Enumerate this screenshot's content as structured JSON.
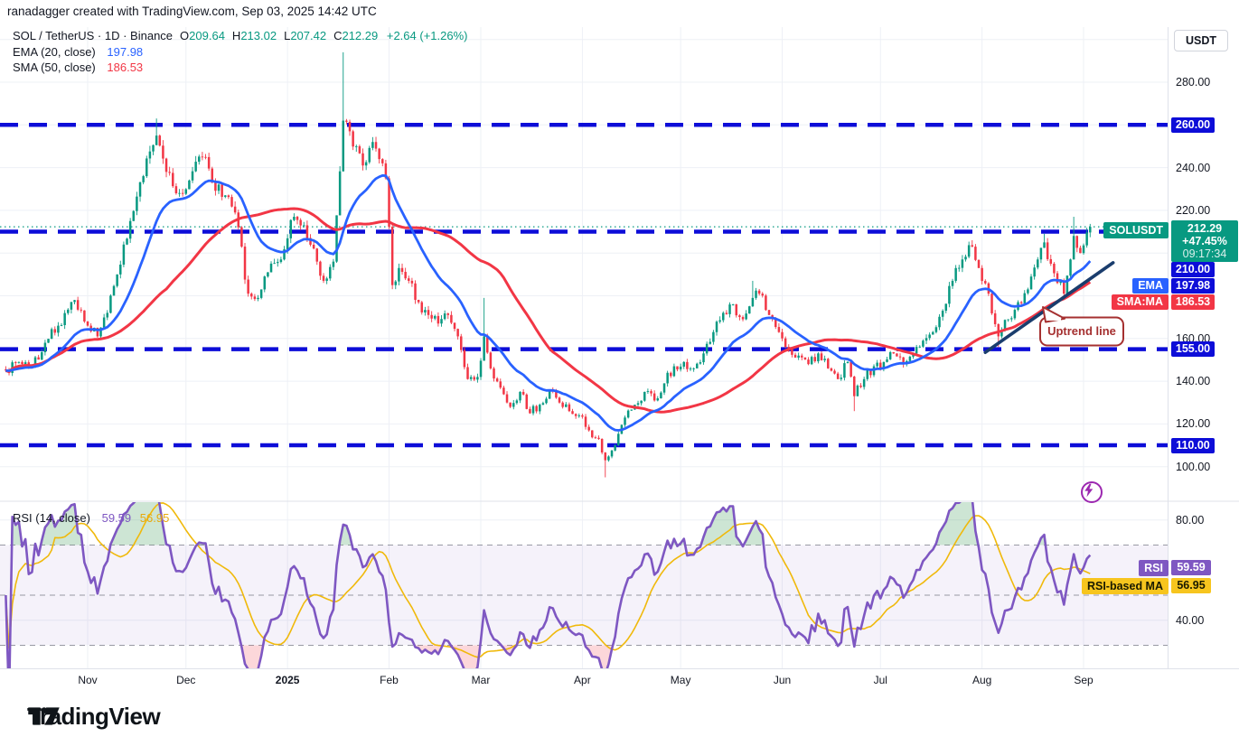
{
  "credit": "ranadagger created with TradingView.com, Sep 03, 2025 14:42 UTC",
  "legend": {
    "symbol": "SOL / TetherUS · 1D · Binance",
    "ohlc": [
      {
        "k": "O",
        "v": "209.64"
      },
      {
        "k": "H",
        "v": "213.02"
      },
      {
        "k": "L",
        "v": "207.42"
      },
      {
        "k": "C",
        "v": "212.29"
      }
    ],
    "change": "+2.64 (+1.26%)",
    "ema_label": "EMA (20, close)",
    "ema_value": "197.98",
    "sma_label": "SMA (50, close)",
    "sma_value": "186.53"
  },
  "rsi_legend": {
    "label": "RSI (14, close)",
    "value1": "59.59",
    "value2": "56.95"
  },
  "axis": {
    "currency": "USDT",
    "price_ticks": [
      {
        "label": "280.00",
        "price": 280
      },
      {
        "label": "240.00",
        "price": 240
      },
      {
        "label": "220.00",
        "price": 220
      },
      {
        "label": "160.00",
        "price": 160
      },
      {
        "label": "140.00",
        "price": 140
      },
      {
        "label": "120.00",
        "price": 120
      },
      {
        "label": "100.00",
        "price": 100
      }
    ],
    "rsi_ticks": [
      {
        "label": "80.00",
        "value": 80
      },
      {
        "label": "40.00",
        "value": 40
      }
    ]
  },
  "levels": [
    {
      "price": 260,
      "label": "260.00"
    },
    {
      "price": 210,
      "label": "210.00"
    },
    {
      "price": 155,
      "label": "155.00"
    },
    {
      "price": 110,
      "label": "110.00"
    }
  ],
  "last_price": {
    "chip": "SOLUSDT",
    "value": "212.29",
    "change_pct": "+47.45%",
    "countdown": "09:17:34"
  },
  "ema_badge": {
    "chip": "EMA",
    "value": "197.98"
  },
  "sma_badge": {
    "chip": "SMA:MA",
    "value": "186.53"
  },
  "rsi_badge": {
    "chip": "RSI",
    "value": "59.59"
  },
  "rsi_ma_badge": {
    "chip": "RSI-based MA",
    "value": "56.95"
  },
  "annotation": {
    "text": "Uptrend line"
  },
  "months": [
    {
      "label": "Nov",
      "day": 25
    },
    {
      "label": "Dec",
      "day": 55
    },
    {
      "label": "2025",
      "day": 86,
      "bold": true
    },
    {
      "label": "Feb",
      "day": 117
    },
    {
      "label": "Mar",
      "day": 145
    },
    {
      "label": "Apr",
      "day": 176
    },
    {
      "label": "May",
      "day": 206
    },
    {
      "label": "Jun",
      "day": 237
    },
    {
      "label": "Jul",
      "day": 267
    },
    {
      "label": "Aug",
      "day": 298
    },
    {
      "label": "Sep",
      "day": 329
    }
  ],
  "logo_text": "TradingView",
  "colors": {
    "up": "#089981",
    "down": "#f23645",
    "ema": "#2962ff",
    "sma": "#f23645",
    "rsi": "#7e57c2",
    "rsi_ma": "#f0b90b",
    "level_blue": "#0d0dd8",
    "trend_navy": "#1a3d6d",
    "callout_red": "#a53030",
    "bolt_purple": "#9c27b0",
    "grid": "#eef0f6",
    "separator": "#dfe2ea",
    "band_purple": "#7e57c2"
  },
  "chart_data": {
    "type": "candlestick",
    "symbol": "SOL/USDT",
    "interval": "1D",
    "exchange": "Binance",
    "title": "SOL / TetherUS · 1D · Binance",
    "last_ohlc": {
      "open": 209.64,
      "high": 213.02,
      "low": 207.42,
      "close": 212.29
    },
    "change": {
      "abs": 2.64,
      "pct": 1.26
    },
    "price_axis": {
      "min": 86,
      "max": 304,
      "tick_step": 20,
      "currency": "USDT"
    },
    "rsi_axis": {
      "dashed_levels": [
        70,
        50,
        30
      ],
      "ticks": [
        80,
        40
      ],
      "band": [
        30,
        70
      ]
    },
    "x_axis_months": [
      "Nov",
      "Dec",
      "2025",
      "Feb",
      "Mar",
      "Apr",
      "May",
      "Jun",
      "Jul",
      "Aug",
      "Sep"
    ],
    "horizontal_levels": [
      260,
      210,
      155,
      110
    ],
    "current_price_line": 212.29,
    "trendline": {
      "label": "Uptrend line",
      "from_day": 299,
      "from_price": 153.5,
      "to_day": 338,
      "to_price": 195.5
    },
    "indicators": [
      {
        "name": "EMA",
        "length": 20,
        "last": 197.98,
        "color": "#2962ff"
      },
      {
        "name": "SMA",
        "length": 50,
        "last": 186.53,
        "color": "#f23645"
      },
      {
        "name": "RSI",
        "length": 14,
        "last": 59.59,
        "color": "#7e57c2"
      },
      {
        "name": "RSI-based MA",
        "length": 14,
        "last": 56.95,
        "color": "#f0b90b"
      }
    ],
    "close_anchors_format": "[day_index, close, optional_high_wick, optional_low_wick] — day 0 ≈ first bar (early Oct 2024), day 25 = Nov 1, day 331 = Sep 3 2025; values estimated from gridlines",
    "close_anchors": [
      [
        0,
        145
      ],
      [
        4,
        149
      ],
      [
        8,
        147
      ],
      [
        12,
        158
      ],
      [
        16,
        166
      ],
      [
        21,
        178
      ],
      [
        25,
        166
      ],
      [
        28,
        161
      ],
      [
        31,
        172
      ],
      [
        34,
        190
      ],
      [
        38,
        215
      ],
      [
        42,
        236
      ],
      [
        46,
        255,
        263
      ],
      [
        49,
        238
      ],
      [
        52,
        228
      ],
      [
        56,
        234
      ],
      [
        60,
        245
      ],
      [
        63,
        233
      ],
      [
        67,
        227
      ],
      [
        70,
        219
      ],
      [
        74,
        181
      ],
      [
        77,
        179
      ],
      [
        80,
        191
      ],
      [
        84,
        197
      ],
      [
        88,
        217
      ],
      [
        91,
        213
      ],
      [
        95,
        196
      ],
      [
        97,
        187
      ],
      [
        100,
        196
      ],
      [
        103,
        262,
        294
      ],
      [
        105,
        257
      ],
      [
        107,
        250
      ],
      [
        109,
        241
      ],
      [
        112,
        252
      ],
      [
        114,
        244
      ],
      [
        116,
        235
      ],
      [
        118,
        185
      ],
      [
        120,
        193
      ],
      [
        123,
        187
      ],
      [
        126,
        177
      ],
      [
        129,
        171
      ],
      [
        132,
        167
      ],
      [
        135,
        171
      ],
      [
        138,
        161
      ],
      [
        141,
        141
      ],
      [
        144,
        142
      ],
      [
        146,
        161,
        179
      ],
      [
        148,
        146
      ],
      [
        151,
        137
      ],
      [
        154,
        128
      ],
      [
        157,
        135
      ],
      [
        160,
        125
      ],
      [
        163,
        129
      ],
      [
        166,
        136
      ],
      [
        169,
        130
      ],
      [
        172,
        126
      ],
      [
        175,
        124
      ],
      [
        178,
        117
      ],
      [
        181,
        113
      ],
      [
        183,
        103,
        0,
        95
      ],
      [
        186,
        110
      ],
      [
        189,
        123
      ],
      [
        192,
        129
      ],
      [
        195,
        135
      ],
      [
        198,
        131
      ],
      [
        201,
        139
      ],
      [
        204,
        147
      ],
      [
        207,
        149
      ],
      [
        210,
        146
      ],
      [
        213,
        153
      ],
      [
        216,
        163
      ],
      [
        219,
        172
      ],
      [
        222,
        176
      ],
      [
        225,
        169
      ],
      [
        228,
        179,
        187
      ],
      [
        230,
        181
      ],
      [
        233,
        171
      ],
      [
        236,
        163
      ],
      [
        239,
        155
      ],
      [
        242,
        152
      ],
      [
        245,
        148
      ],
      [
        248,
        153
      ],
      [
        251,
        146
      ],
      [
        254,
        141
      ],
      [
        257,
        149
      ],
      [
        259,
        133,
        0,
        126
      ],
      [
        262,
        141
      ],
      [
        265,
        147
      ],
      [
        268,
        149
      ],
      [
        271,
        153
      ],
      [
        274,
        148
      ],
      [
        277,
        153
      ],
      [
        280,
        159
      ],
      [
        283,
        163
      ],
      [
        286,
        173
      ],
      [
        289,
        187
      ],
      [
        292,
        197
      ],
      [
        295,
        203,
        206
      ],
      [
        297,
        193
      ],
      [
        300,
        181
      ],
      [
        303,
        161,
        0,
        156
      ],
      [
        306,
        169
      ],
      [
        309,
        177
      ],
      [
        312,
        183
      ],
      [
        315,
        197
      ],
      [
        317,
        205,
        209
      ],
      [
        319,
        195
      ],
      [
        321,
        186
      ],
      [
        323,
        181
      ],
      [
        325,
        197
      ],
      [
        326,
        208,
        217
      ],
      [
        328,
        200
      ],
      [
        330,
        209.64
      ],
      [
        331,
        212.29,
        213.02,
        207.42
      ]
    ]
  }
}
